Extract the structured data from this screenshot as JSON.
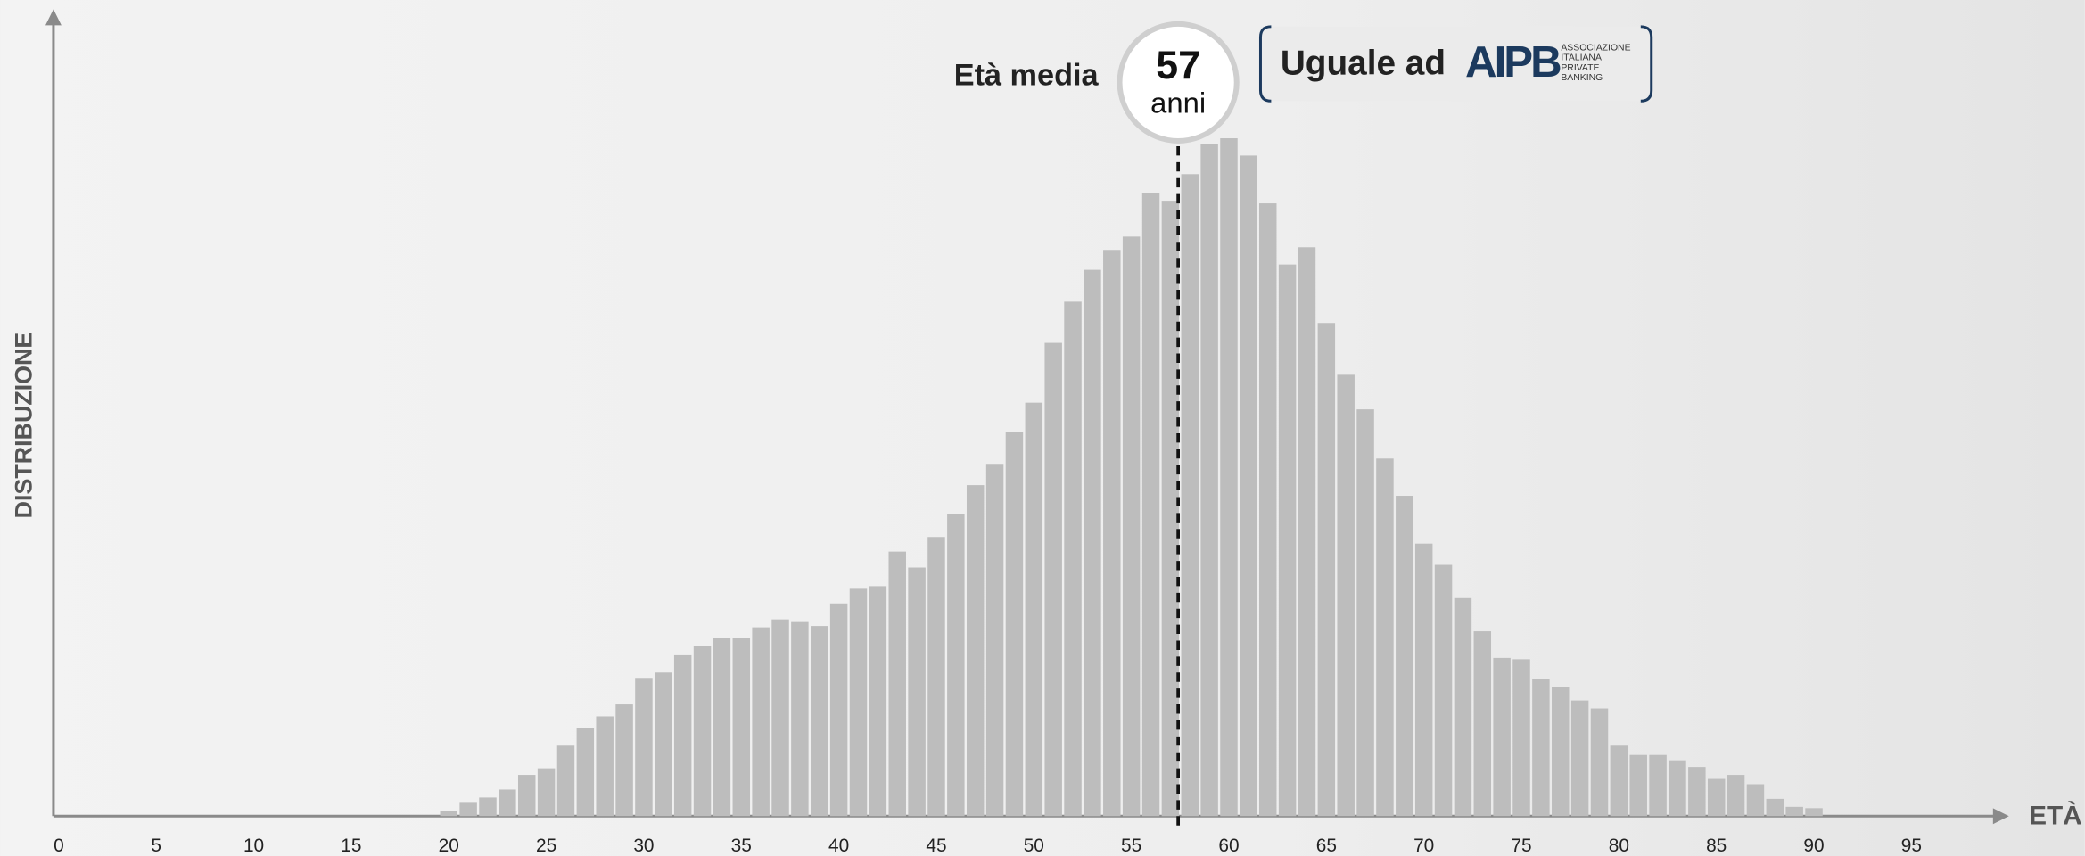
{
  "chart_data": {
    "type": "histogram",
    "y_label": "DISTRIBUZIONE",
    "x_label": "ETÀ",
    "bins": [
      19.5,
      20.5,
      21.5,
      22.5,
      23.5,
      24.5,
      25.5,
      26.5,
      27.5,
      28.5,
      29.5,
      30.5,
      31.5,
      32.5,
      33.5,
      34.5,
      35.5,
      36.5,
      37.5,
      38.5,
      39.5,
      40.5,
      41.5,
      42.5,
      43.5,
      44.5,
      45.5,
      46.5,
      47.5,
      48.5,
      49.5,
      50.5,
      51.5,
      52.5,
      53.5,
      54.5,
      55.5,
      56.5,
      57.5,
      58.5,
      59.5,
      60.5,
      61.5,
      62.5,
      63.5,
      64.5,
      65.5,
      66.5,
      67.5,
      68.5,
      69.5,
      70.5,
      71.5,
      72.5,
      73.5,
      74.5,
      75.5,
      76.5,
      77.5,
      78.5,
      79.5,
      80.5,
      81.5,
      82.5,
      83.5,
      84.5,
      85.5,
      86.5,
      87.5,
      88.5,
      89.5,
      90.5
    ],
    "values": [
      4,
      10,
      14,
      20,
      31,
      36,
      53,
      66,
      75,
      84,
      104,
      108,
      121,
      128,
      134,
      134,
      142,
      148,
      146,
      143,
      160,
      171,
      173,
      199,
      187,
      210,
      227,
      249,
      265,
      289,
      311,
      356,
      387,
      411,
      426,
      436,
      469,
      463,
      483,
      506,
      510,
      497,
      461,
      415,
      428,
      371,
      332,
      306,
      269,
      241,
      205,
      189,
      164,
      139,
      119,
      118,
      103,
      97,
      87,
      81,
      53,
      46,
      46,
      42,
      37,
      28,
      31,
      24,
      13,
      7,
      6
    ],
    "color": "#bdbdbd",
    "xlim": [
      0,
      100
    ],
    "ylim": [
      0,
      604
    ],
    "xticks": [
      0,
      5,
      10,
      15,
      20,
      25,
      30,
      35,
      40,
      45,
      50,
      55,
      60,
      65,
      70,
      75,
      80,
      85,
      90,
      95
    ],
    "grid": false,
    "mean": {
      "text": "Età media",
      "value": 57.4,
      "label": "57",
      "unit": "anni"
    },
    "badge": {
      "text": "Uguale ad",
      "logo": "AIPB",
      "logo_lines": [
        "ASSOCIAZIONE",
        "ITALIANA",
        "PRIVATE",
        "BANKING"
      ]
    }
  }
}
